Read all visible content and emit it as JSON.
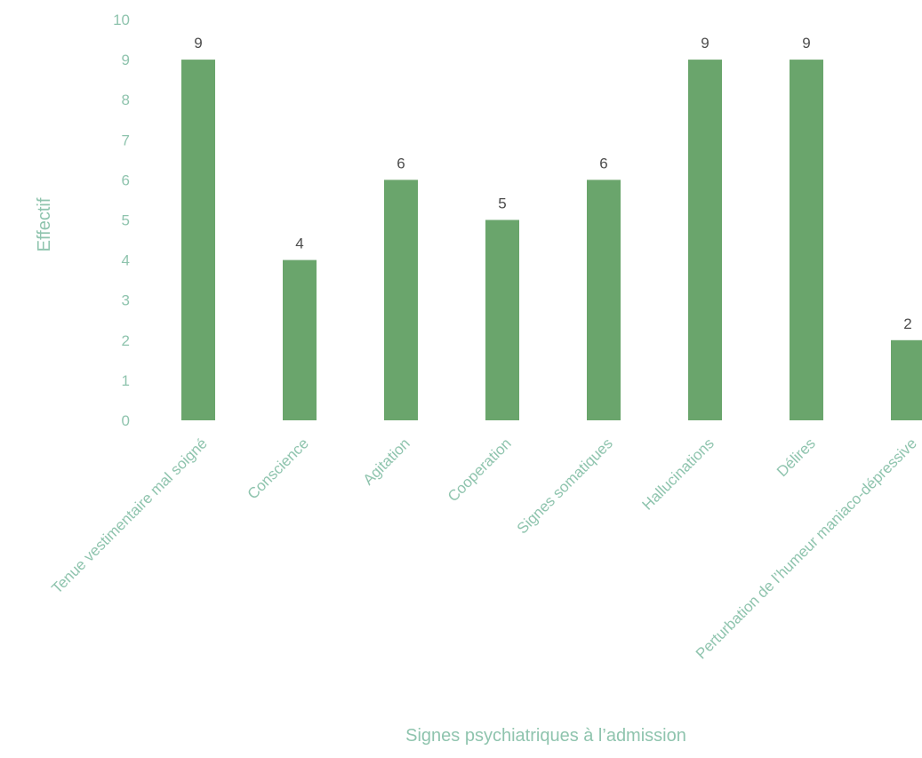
{
  "chart_data": {
    "type": "bar",
    "title": "",
    "xlabel": "Signes psychiatriques à l’admission",
    "ylabel": "Effectif",
    "categories": [
      "Tenue vestimentaire mal soigné",
      "Conscience",
      "Agitation",
      "Cooperation",
      "Signes somatiques",
      "Hallucinations",
      "Délires",
      "Perturbation de l’humeur maniaco-dépressive"
    ],
    "values": [
      9,
      4,
      6,
      5,
      6,
      9,
      9,
      2
    ],
    "value_labels": [
      "9",
      "4",
      "6",
      "5",
      "6",
      "9",
      "9",
      "2"
    ],
    "ylim": [
      0,
      10
    ],
    "yticks": [
      0,
      1,
      2,
      3,
      4,
      5,
      6,
      7,
      8,
      9,
      10
    ],
    "ytick_labels": [
      "0",
      "1",
      "2",
      "3",
      "4",
      "5",
      "6",
      "7",
      "8",
      "9",
      "10"
    ],
    "grid": false,
    "legend": "none",
    "colors": {
      "bar": "#6aa56c",
      "axis_text": "#8fc4ae",
      "value_text": "#4d4d4d"
    }
  }
}
